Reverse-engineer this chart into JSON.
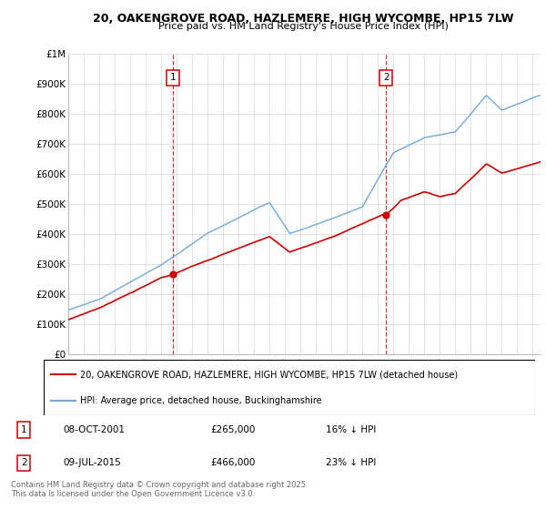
{
  "title": "20, OAKENGROVE ROAD, HAZLEMERE, HIGH WYCOMBE, HP15 7LW",
  "subtitle": "Price paid vs. HM Land Registry's House Price Index (HPI)",
  "ylim": [
    0,
    1000000
  ],
  "yticks": [
    0,
    100000,
    200000,
    300000,
    400000,
    500000,
    600000,
    700000,
    800000,
    900000,
    1000000
  ],
  "ytick_labels": [
    "£0",
    "£100K",
    "£200K",
    "£300K",
    "£400K",
    "£500K",
    "£600K",
    "£700K",
    "£800K",
    "£900K",
    "£1M"
  ],
  "hpi_color": "#6fa8dc",
  "price_color": "#cc0000",
  "legend_line1": "20, OAKENGROVE ROAD, HAZLEMERE, HIGH WYCOMBE, HP15 7LW (detached house)",
  "legend_line2": "HPI: Average price, detached house, Buckinghamshire",
  "footer": "Contains HM Land Registry data © Crown copyright and database right 2025.\nThis data is licensed under the Open Government Licence v3.0.",
  "background_color": "#ffffff",
  "grid_color": "#dddddd",
  "marker1_x": 2001.77,
  "marker2_x": 2015.52
}
